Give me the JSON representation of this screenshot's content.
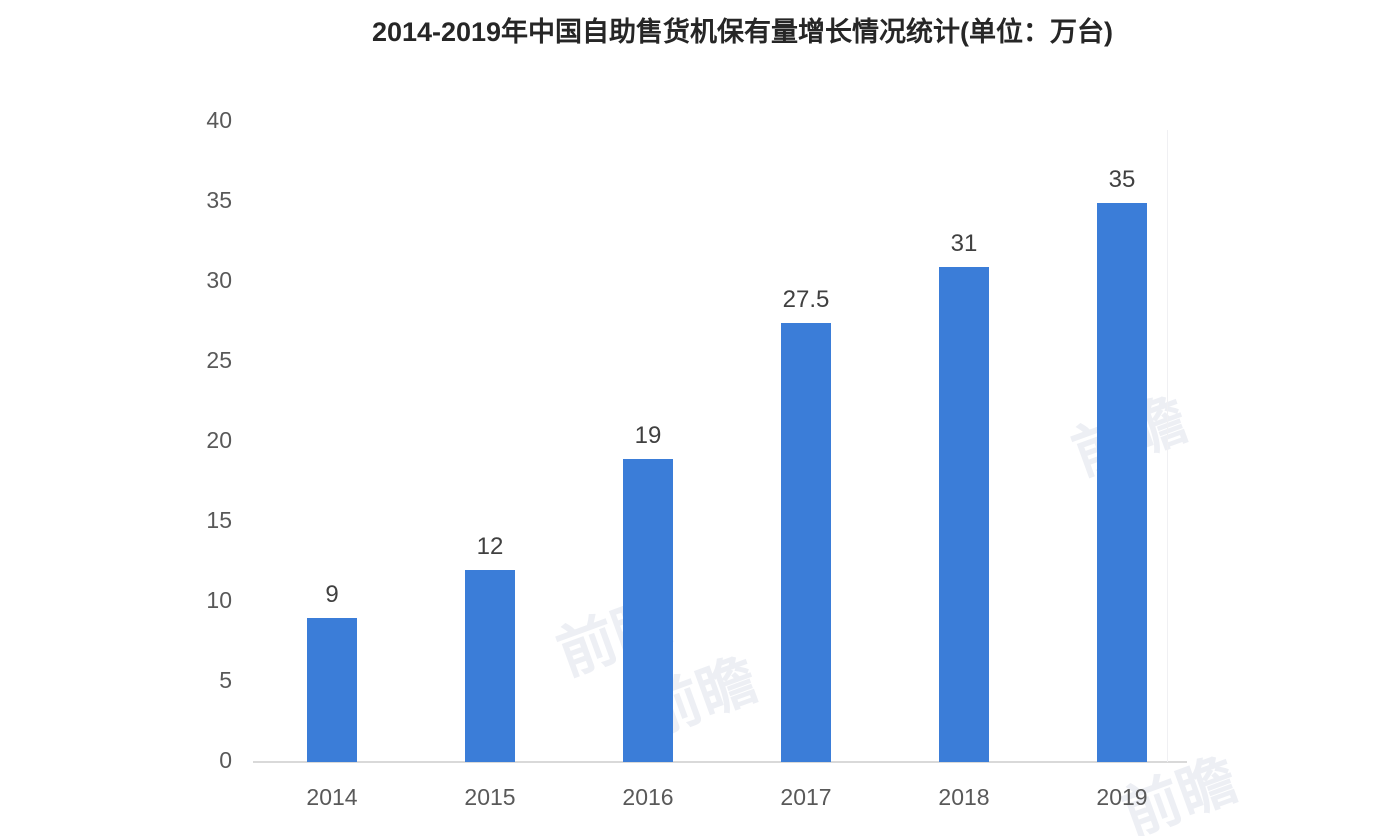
{
  "chart_data": {
    "type": "bar",
    "title": "2014-2019年中国自助售货机保有量增长情况统计(单位：万台)",
    "categories": [
      "2014",
      "2015",
      "2016",
      "2017",
      "2018",
      "2019"
    ],
    "values": [
      9,
      12,
      19,
      27.5,
      31,
      35
    ],
    "value_labels": [
      "9",
      "12",
      "19",
      "27.5",
      "31",
      "35"
    ],
    "series_name": "自助售货机保有量",
    "unit": "万台",
    "xlabel": "",
    "ylabel": "",
    "ylim": [
      0,
      40
    ],
    "yticks": [
      0,
      5,
      10,
      15,
      20,
      25,
      30,
      35,
      40
    ],
    "grid": false,
    "legend_position": "none",
    "bar_color": "#3b7dd8",
    "axis_line_color": "#d9d9d9",
    "tick_label_color": "#595959",
    "value_label_color": "#404040",
    "title_color": "#262626"
  },
  "watermark": {
    "text": "前瞻"
  }
}
